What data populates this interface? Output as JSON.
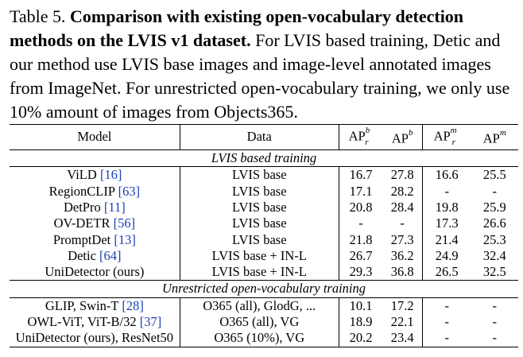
{
  "caption": {
    "label": "Table 5. ",
    "bold": "Comparison with existing open-vocabulary detection methods on the LVIS v1 dataset.",
    "body": " For LVIS based training, Detic and our method use LVIS base images and image-level annotated images from ImageNet. For unrestricted open-vocabulary training, we only use 10% amount of images from Objects365."
  },
  "header": {
    "model": "Model",
    "data": "Data",
    "ap_base": "AP",
    "ap_r_sup": "b",
    "ap_r_sub": "r",
    "ap_b_sup": "b",
    "apm_r_sup": "m",
    "apm_r_sub": "r",
    "apm_sup": "m"
  },
  "sections": [
    {
      "title": "LVIS based training",
      "rows": [
        {
          "model": "ViLD ",
          "cite": "[16]",
          "data": "LVIS base",
          "v": [
            "16.7",
            "27.8",
            "16.6",
            "25.5"
          ],
          "bold": [
            false,
            false,
            false,
            false
          ]
        },
        {
          "model": "RegionCLIP ",
          "cite": "[63]",
          "data": "LVIS base",
          "v": [
            "17.1",
            "28.2",
            "-",
            "-"
          ],
          "bold": [
            false,
            false,
            false,
            false
          ]
        },
        {
          "model": "DetPro ",
          "cite": "[11]",
          "data": "LVIS base",
          "v": [
            "20.8",
            "28.4",
            "19.8",
            "25.9"
          ],
          "bold": [
            false,
            false,
            false,
            false
          ]
        },
        {
          "model": "OV-DETR ",
          "cite": "[56]",
          "data": "LVIS base",
          "v": [
            "-",
            "-",
            "17.3",
            "26.6"
          ],
          "bold": [
            false,
            false,
            false,
            false
          ]
        },
        {
          "model": "PromptDet ",
          "cite": "[13]",
          "data": "LVIS base",
          "v": [
            "21.8",
            "27.3",
            "21.4",
            "25.3"
          ],
          "bold": [
            false,
            false,
            false,
            false
          ]
        },
        {
          "model": "Detic ",
          "cite": "[64]",
          "data": "LVIS base + IN-L",
          "v": [
            "26.7",
            "36.2",
            "24.9",
            "32.4"
          ],
          "bold": [
            false,
            false,
            false,
            false
          ]
        },
        {
          "model": "UniDetector (ours)",
          "cite": "",
          "data": "LVIS base + IN-L",
          "v": [
            "29.3",
            "36.8",
            "26.5",
            "32.5"
          ],
          "bold": [
            true,
            true,
            true,
            true
          ]
        }
      ]
    },
    {
      "title": "Unrestricted open-vocabulary training",
      "rows": [
        {
          "model": "GLIP, Swin-T ",
          "cite": "[28]",
          "data": "O365 (all), GlodG, ...",
          "v": [
            "10.1",
            "17.2",
            "-",
            "-"
          ],
          "bold": [
            false,
            false,
            false,
            false
          ]
        },
        {
          "model": "OWL-ViT, ViT-B/32 ",
          "cite": "[37]",
          "data": "O365 (all), VG",
          "v": [
            "18.9",
            "22.1",
            "-",
            "-"
          ],
          "bold": [
            false,
            false,
            false,
            false
          ]
        },
        {
          "model": "UniDetector (ours), ResNet50",
          "cite": "",
          "data": "O365 (10%), VG",
          "v": [
            "20.2",
            "23.4",
            "-",
            "-"
          ],
          "bold": [
            true,
            true,
            false,
            false
          ]
        }
      ]
    }
  ]
}
